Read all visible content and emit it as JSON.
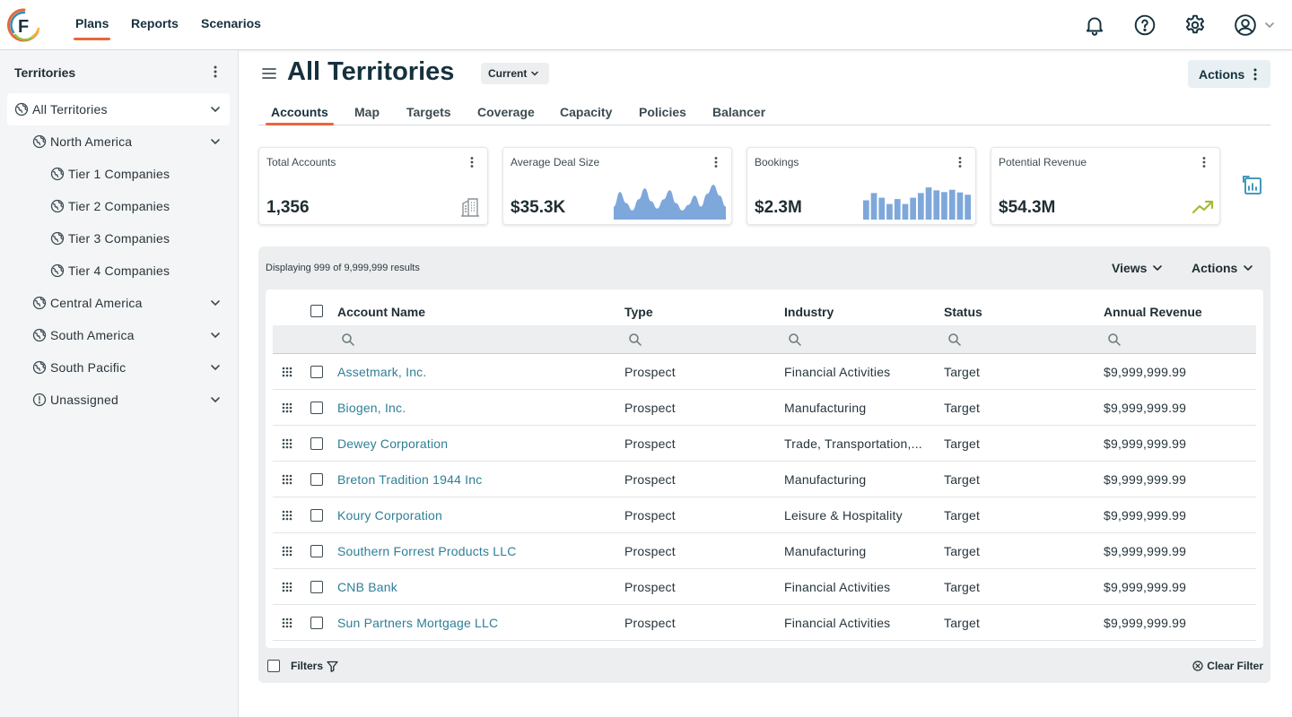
{
  "nav": {
    "items": [
      {
        "label": "Plans",
        "active": true
      },
      {
        "label": "Reports",
        "active": false
      },
      {
        "label": "Scenarios",
        "active": false
      }
    ],
    "icons": [
      "bell-icon",
      "help-icon",
      "settings-icon",
      "user-icon",
      "chevron-down-icon"
    ],
    "accent_color": "#e8673a"
  },
  "sidebar": {
    "title": "Territories",
    "items": [
      {
        "label": "All Territories",
        "icon": "globe-icon",
        "selected": true,
        "expandable": true
      },
      {
        "label": "North America",
        "icon": "globe-icon",
        "expandable": true
      },
      {
        "label": "Tier 1 Companies",
        "icon": "globe-icon",
        "expandable": false
      },
      {
        "label": "Tier 2 Companies",
        "icon": "globe-icon",
        "expandable": false
      },
      {
        "label": "Tier 3 Companies",
        "icon": "globe-icon",
        "expandable": false
      },
      {
        "label": "Tier 4 Companies",
        "icon": "globe-icon",
        "expandable": false
      },
      {
        "label": "Central America",
        "icon": "globe-icon",
        "expandable": true
      },
      {
        "label": "South America",
        "icon": "globe-icon",
        "expandable": true
      },
      {
        "label": "South Pacific",
        "icon": "globe-icon",
        "expandable": true
      },
      {
        "label": "Unassigned",
        "icon": "alert-circle-icon",
        "expandable": true
      }
    ]
  },
  "header": {
    "title": "All Territories",
    "version_select": "Current",
    "actions_label": "Actions"
  },
  "tabs": [
    {
      "label": "Accounts",
      "active": true
    },
    {
      "label": "Map"
    },
    {
      "label": "Targets"
    },
    {
      "label": "Coverage"
    },
    {
      "label": "Capacity"
    },
    {
      "label": "Policies"
    },
    {
      "label": "Balancer"
    }
  ],
  "cards": [
    {
      "title": "Total Accounts",
      "value": "1,356",
      "icon": "building-icon"
    },
    {
      "title": "Average Deal Size",
      "value": "$35.3K",
      "icon": "area-sparkline"
    },
    {
      "title": "Bookings",
      "value": "$2.3M",
      "icon": "bar-sparkline"
    },
    {
      "title": "Potential Revenue",
      "value": "$54.3M",
      "icon": "trending-up-icon"
    }
  ],
  "sparkline_area": [
    0.35,
    0.75,
    0.45,
    0.25,
    0.55,
    0.85,
    0.5,
    0.3,
    0.55,
    0.8,
    0.45,
    0.25,
    0.4,
    0.65,
    0.35,
    0.7,
    0.95,
    0.65,
    0.35
  ],
  "sparkline_bars": [
    0.58,
    0.8,
    0.66,
    0.47,
    0.62,
    0.47,
    0.66,
    0.8,
    0.97,
    0.88,
    0.83,
    0.9,
    0.82,
    0.75
  ],
  "sparkline_color": "#7ea7db",
  "table": {
    "results_text": "Displaying 999 of 9,999,999 results",
    "views_label": "Views",
    "actions_label": "Actions",
    "columns": [
      "Account Name",
      "Type",
      "Industry",
      "Status",
      "Annual Revenue"
    ],
    "rows": [
      [
        "Assetmark, Inc.",
        "Prospect",
        "Financial Activities",
        "Target",
        "$9,999,999.99"
      ],
      [
        "Biogen, Inc.",
        "Prospect",
        "Manufacturing",
        "Target",
        "$9,999,999.99"
      ],
      [
        "Dewey Corporation",
        "Prospect",
        "Trade, Transportation,...",
        "Target",
        "$9,999,999.99"
      ],
      [
        "Breton Tradition 1944 Inc",
        "Prospect",
        "Manufacturing",
        "Target",
        "$9,999,999.99"
      ],
      [
        "Koury Corporation",
        "Prospect",
        "Leisure & Hospitality",
        "Target",
        "$9,999,999.99"
      ],
      [
        "Southern Forrest Products LLC",
        "Prospect",
        "Manufacturing",
        "Target",
        "$9,999,999.99"
      ],
      [
        "CNB Bank",
        "Prospect",
        "Financial Activities",
        "Target",
        "$9,999,999.99"
      ],
      [
        "Sun Partners Mortgage LLC",
        "Prospect",
        "Financial Activities",
        "Target",
        "$9,999,999.99"
      ]
    ],
    "filters_label": "Filters",
    "clear_filter_label": "Clear Filter",
    "link_color": "#2e7f97"
  }
}
